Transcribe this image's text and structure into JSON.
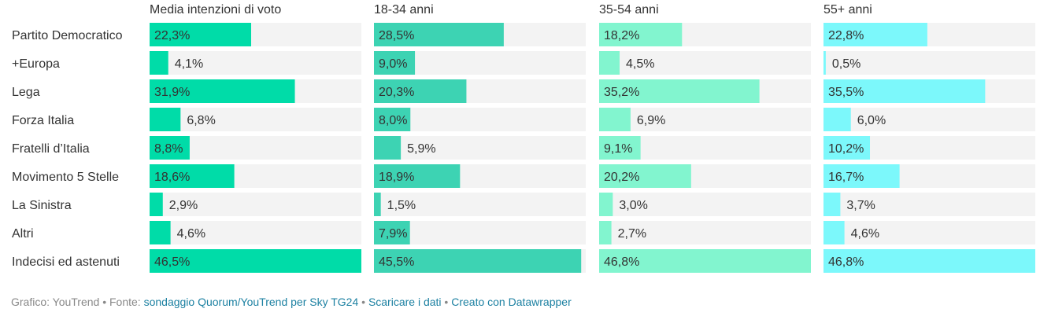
{
  "chart_data": {
    "type": "bar",
    "orientation": "horizontal",
    "categories": [
      "Partito Democratico",
      "+Europa",
      "Lega",
      "Forza Italia",
      "Fratelli d’Italia",
      "Movimento 5 Stelle",
      "La Sinistra",
      "Altri",
      "Indecisi ed astenuti"
    ],
    "xlim": [
      0,
      46.5
    ],
    "value_suffix": "%",
    "background_color": "#f3f3f3",
    "series": [
      {
        "name": "Media intenzioni di voto",
        "color": "#00dca8",
        "values": [
          22.3,
          4.1,
          31.9,
          6.8,
          8.8,
          18.6,
          2.9,
          4.6,
          46.5
        ],
        "labels": [
          "22,3%",
          "4,1%",
          "31,9%",
          "6,8%",
          "8,8%",
          "18,6%",
          "2,9%",
          "4,6%",
          "46,5%"
        ]
      },
      {
        "name": "18-34 anni",
        "color": "#3dd3b3",
        "values": [
          28.5,
          9.0,
          20.3,
          8.0,
          5.9,
          18.9,
          1.5,
          7.9,
          45.5
        ],
        "labels": [
          "28,5%",
          "9,0%",
          "20,3%",
          "8,0%",
          "5,9%",
          "18,9%",
          "1,5%",
          "7,9%",
          "45,5%"
        ]
      },
      {
        "name": "35-54 anni",
        "color": "#82f5cf",
        "values": [
          18.2,
          4.5,
          35.2,
          6.9,
          9.1,
          20.2,
          3.0,
          2.7,
          46.8
        ],
        "labels": [
          "18,2%",
          "4,5%",
          "35,2%",
          "6,9%",
          "9,1%",
          "20,2%",
          "3,0%",
          "2,7%",
          "46,8%"
        ]
      },
      {
        "name": "55+ anni",
        "color": "#7cf8fb",
        "values": [
          22.8,
          0.5,
          35.5,
          6.0,
          10.2,
          16.7,
          3.7,
          4.6,
          46.8
        ],
        "labels": [
          "22,8%",
          "0,5%",
          "35,5%",
          "6,0%",
          "10,2%",
          "16,7%",
          "3,7%",
          "4,6%",
          "46,8%"
        ]
      }
    ]
  },
  "footer": {
    "prefix": "Grafico: YouTrend • Fonte:",
    "source_link": "sondaggio Quorum/YouTrend per Sky TG24",
    "sep": "•",
    "download_link": "Scaricare i dati",
    "created_link": "Creato con Datawrapper"
  }
}
